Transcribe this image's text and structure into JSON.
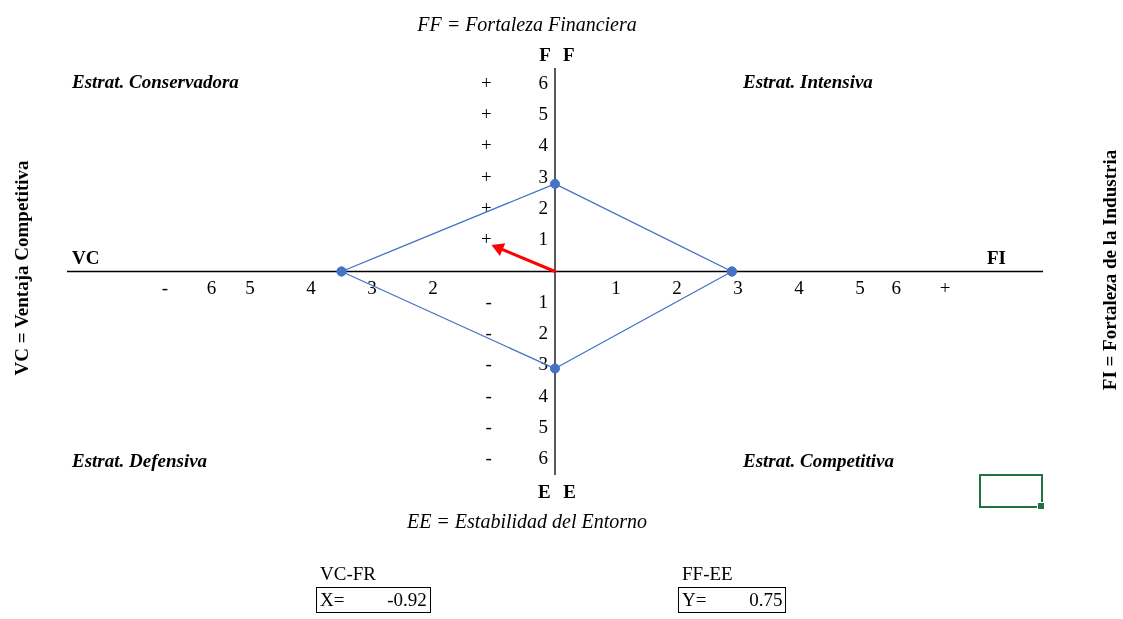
{
  "chart_data": {
    "type": "line",
    "title": "FF = Fortaleza Financiera",
    "xlabel": "EE = Estabilidad del Entorno",
    "ylabel": "VC = Ventaja Competitiva",
    "annotations": [
      "Estrat. Conservadora",
      "Estrat. Intensiva",
      "Estrat. Defensiva",
      "Estrat. Competitiva",
      "F F",
      "E E",
      "VC",
      "FI",
      "FI = Fortaleza de la Industria",
      "VC-FR",
      "X= -0.92",
      "FF-EE",
      "Y= 0.75"
    ],
    "series": [
      {
        "color": "#4472c4",
        "x": [
          -3.5,
          0,
          2.9
        ],
        "values": [
          0,
          2.8,
          0
        ]
      },
      {
        "color": "#4472c4",
        "x": [
          -3.5,
          0,
          2.9
        ],
        "values": [
          0,
          -3.1,
          0
        ]
      },
      {
        "color": "#ff0000",
        "x": [
          0,
          -0.92
        ],
        "values": [
          0,
          0.75
        ],
        "marker": "triangle"
      }
    ],
    "marker": "circle",
    "xlim": [
      -8,
      8
    ],
    "ylim": [
      -6.5,
      6.5
    ],
    "xticks": [
      {
        "value": -6,
        "label": "- 6"
      },
      {
        "value": -5,
        "label": "5"
      },
      {
        "value": -4,
        "label": "4"
      },
      {
        "value": -3,
        "label": "3"
      },
      {
        "value": -2,
        "label": "2"
      },
      1,
      2,
      3,
      4,
      5,
      {
        "value": 6,
        "label": "6 +"
      }
    ],
    "yticks": [
      {
        "value": -6,
        "label": "- 6"
      },
      {
        "value": -5,
        "label": "- 5"
      },
      {
        "value": -4,
        "label": "- 4"
      },
      {
        "value": -3,
        "label": "- 3"
      },
      {
        "value": -2,
        "label": "- 2"
      },
      {
        "value": -1,
        "label": "- 1"
      },
      {
        "value": 1,
        "label": "+ 1"
      },
      {
        "value": 2,
        "label": "+ 2"
      },
      {
        "value": 3,
        "label": "+ 3"
      },
      {
        "value": 4,
        "label": "+ 4"
      },
      {
        "value": 5,
        "label": "+ 5"
      },
      {
        "value": 6,
        "label": "+ 6"
      }
    ]
  }
}
